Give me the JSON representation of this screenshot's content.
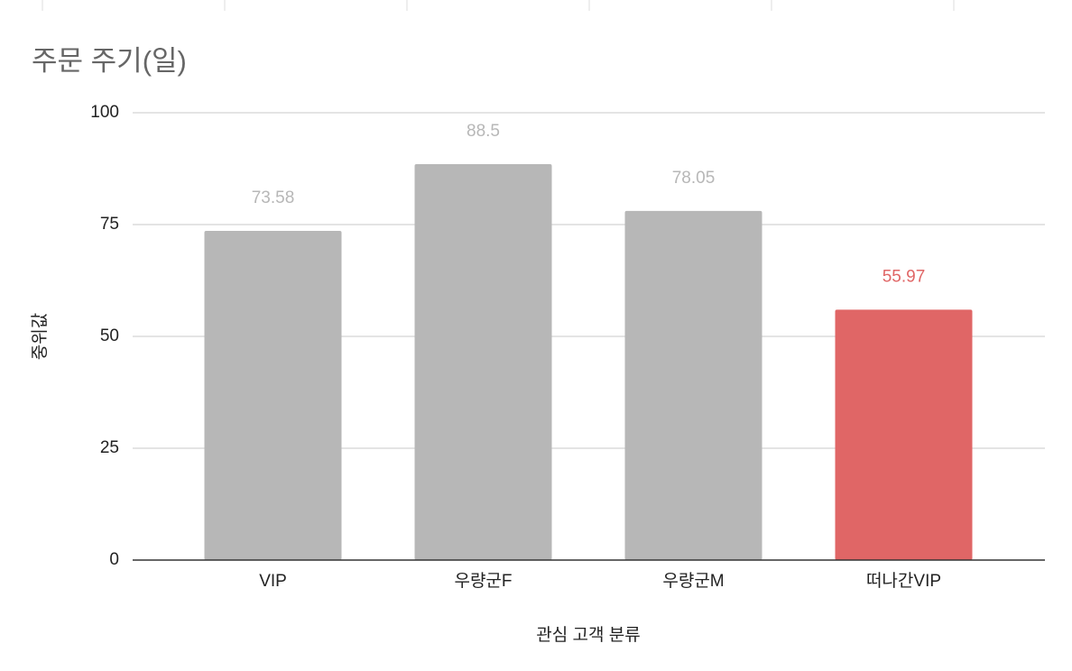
{
  "chart_data": {
    "type": "bar",
    "title": "주문 주기(일)",
    "x_label": "관심 고객 분류",
    "y_label": "중위값",
    "categories": [
      "VIP",
      "우량군F",
      "우량군M",
      "떠나간VIP"
    ],
    "values": [
      73.58,
      88.5,
      78.05,
      55.97
    ],
    "colors": [
      "#b7b7b7",
      "#b7b7b7",
      "#b7b7b7",
      "#e06666"
    ],
    "ylim": [
      0,
      100
    ],
    "yticks": [
      0,
      25,
      50,
      75,
      100
    ],
    "grid": true
  }
}
